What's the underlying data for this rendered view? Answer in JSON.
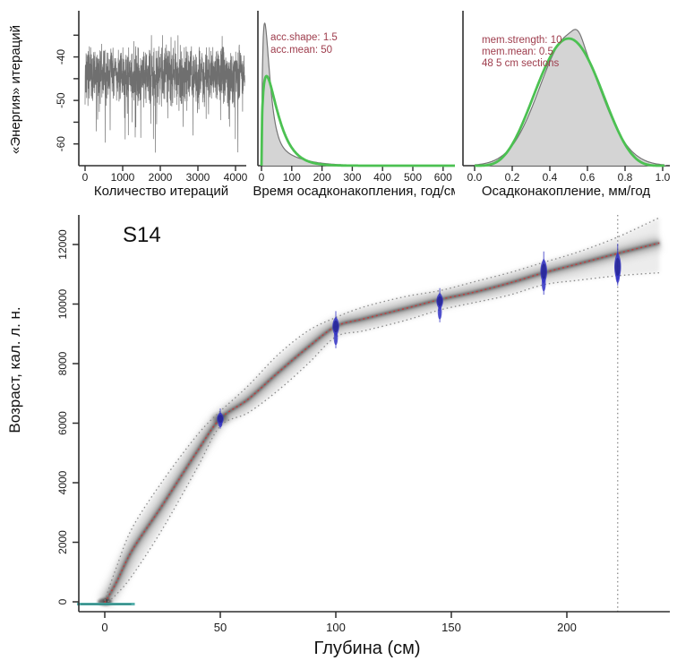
{
  "figure": {
    "background": "#ffffff",
    "description_title": "S14"
  },
  "colors": {
    "prior_green": "#4cc152",
    "annotation_red": "#9e3c4c",
    "date_blue": "#3434c4",
    "median_red": "#bf4040",
    "ci_grey": "#8a8a8a",
    "surface_teal": "#46a8a4",
    "posterior_fill": "#d2d2d2",
    "posterior_outline": "#757575",
    "trace_grey": "#6f6f6f",
    "axis": "#2e2e2e"
  },
  "chart_data": [
    {
      "id": "iteration_trace",
      "type": "line",
      "xlabel": "Количество итераций",
      "ylabel": "«Энергия» итераций",
      "xlim": [
        0,
        4250
      ],
      "ylim": [
        -65,
        -30
      ],
      "xticks": [
        0,
        1000,
        2000,
        3000,
        4000
      ],
      "yticks_labeled": [
        -40,
        -50,
        -60
      ],
      "yticks_minor": [
        -35,
        -40,
        -45,
        -50,
        -55,
        -60
      ],
      "series_summary": {
        "n_points": 1300,
        "mean": -44,
        "min": -62,
        "max": -35
      }
    },
    {
      "id": "accumulation_rate",
      "type": "area",
      "xlabel": "Время осадконакопления, год/см",
      "annotation1": "acc.shape: 1.5",
      "annotation2": "acc.mean: 50",
      "xlim": [
        0,
        640
      ],
      "xticks": [
        0,
        100,
        200,
        300,
        400,
        500,
        600
      ],
      "prior": {
        "distribution": "gamma",
        "shape": 1.5,
        "mean": 50
      },
      "posterior_approx": {
        "mode": 10,
        "shape": 1.8,
        "tail_mean": 55,
        "tail_weight": 0.12
      }
    },
    {
      "id": "memory",
      "type": "area",
      "xlabel": "Осадконакопление, мм/год",
      "annotation1": "mem.strength: 10",
      "annotation2": "mem.mean: 0.5",
      "annotation3": "48 5 cm sections",
      "xlim": [
        0,
        1.05
      ],
      "xticks": [
        "0.0",
        "0.2",
        "0.4",
        "0.6",
        "0.8",
        "1.0"
      ],
      "prior": {
        "distribution": "beta",
        "strength": 10,
        "mean": 0.5
      },
      "posterior_approx": {
        "mean": 0.505,
        "sd": 0.158,
        "bump_mean": 0.55,
        "bump_sd": 0.028,
        "bump_weight": 0.07
      }
    },
    {
      "id": "age_depth_model",
      "type": "scatter",
      "title": "S14",
      "xlabel": "Глубина (см)",
      "ylabel": "Возраст, кал. л. н.",
      "xticks": [
        0,
        50,
        100,
        150,
        200
      ],
      "yticks": [
        0,
        2000,
        4000,
        6000,
        8000,
        10000,
        12000
      ],
      "xlim": [
        -12,
        244
      ],
      "ylim": [
        -400,
        13000
      ],
      "max_model_depth": 222,
      "surface_date": {
        "depth_from": -12,
        "depth_to": 13,
        "age": 0
      },
      "model_knots": [
        {
          "d": 0,
          "lo": -80,
          "md": -30,
          "up": 40
        },
        {
          "d": 5,
          "lo": 250,
          "md": 650,
          "up": 1150
        },
        {
          "d": 12,
          "lo": 900,
          "md": 1750,
          "up": 2500
        },
        {
          "d": 25,
          "lo": 2450,
          "md": 3250,
          "up": 4050
        },
        {
          "d": 40,
          "lo": 4500,
          "md": 5050,
          "up": 5600
        },
        {
          "d": 50,
          "lo": 5900,
          "md": 6150,
          "up": 6400
        },
        {
          "d": 62,
          "lo": 6350,
          "md": 6800,
          "up": 7250
        },
        {
          "d": 75,
          "lo": 7100,
          "md": 7700,
          "up": 8300
        },
        {
          "d": 88,
          "lo": 8000,
          "md": 8550,
          "up": 9100
        },
        {
          "d": 100,
          "lo": 8900,
          "md": 9250,
          "up": 9550
        },
        {
          "d": 112,
          "lo": 9100,
          "md": 9500,
          "up": 9900
        },
        {
          "d": 130,
          "lo": 9450,
          "md": 9850,
          "up": 10250
        },
        {
          "d": 145,
          "lo": 9800,
          "md": 10150,
          "up": 10450
        },
        {
          "d": 160,
          "lo": 10050,
          "md": 10400,
          "up": 10750
        },
        {
          "d": 175,
          "lo": 10300,
          "md": 10700,
          "up": 11050
        },
        {
          "d": 190,
          "lo": 10650,
          "md": 11050,
          "up": 11400
        },
        {
          "d": 205,
          "lo": 10800,
          "md": 11350,
          "up": 11750
        },
        {
          "d": 222,
          "lo": 10950,
          "md": 11700,
          "up": 12250
        },
        {
          "d": 240,
          "lo": 11050,
          "md": 12050,
          "up": 12900
        }
      ],
      "dates": [
        {
          "depth": 50,
          "age": 6150,
          "younger": 220,
          "older": 320
        },
        {
          "depth": 100,
          "age": 9250,
          "younger": 330,
          "older": 700
        },
        {
          "depth": 145,
          "age": 10100,
          "younger": 280,
          "older": 680
        },
        {
          "depth": 190,
          "age": 11100,
          "younger": 430,
          "older": 750
        },
        {
          "depth": 222,
          "age": 11250,
          "younger": 500,
          "older": 600
        }
      ]
    }
  ]
}
